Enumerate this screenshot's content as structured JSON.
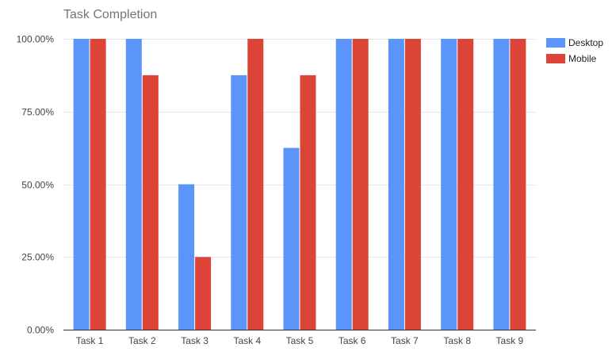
{
  "chart_data": {
    "type": "bar",
    "title": "Task Completion",
    "xlabel": "",
    "ylabel": "",
    "categories": [
      "Task 1",
      "Task 2",
      "Task 3",
      "Task 4",
      "Task 5",
      "Task 6",
      "Task 7",
      "Task 8",
      "Task 9"
    ],
    "series": [
      {
        "name": "Desktop",
        "color": "#5b95f9",
        "values": [
          100,
          100,
          50,
          87.5,
          62.5,
          100,
          100,
          100,
          100
        ]
      },
      {
        "name": "Mobile",
        "color": "#dc4437",
        "values": [
          100,
          87.5,
          25,
          100,
          87.5,
          100,
          100,
          100,
          100
        ]
      }
    ],
    "ylim": [
      0,
      100
    ],
    "yticks": [
      {
        "value": 0,
        "label": "0.00%"
      },
      {
        "value": 25,
        "label": "25.00%"
      },
      {
        "value": 50,
        "label": "50.00%"
      },
      {
        "value": 75,
        "label": "75.00%"
      },
      {
        "value": 100,
        "label": "100.00%"
      }
    ],
    "grid": true,
    "legend_position": "right"
  }
}
